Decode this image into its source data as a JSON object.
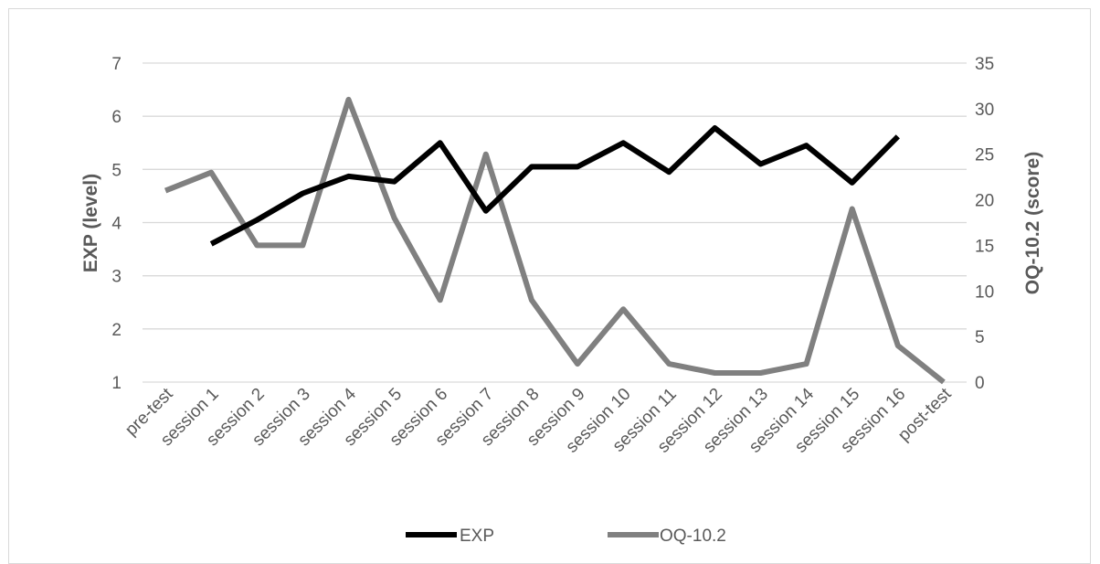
{
  "chart_data": {
    "type": "line",
    "categories": [
      "pre-test",
      "session 1",
      "session 2",
      "session 3",
      "session 4",
      "session 5",
      "session 6",
      "session 7",
      "session 8",
      "session 9",
      "session 10",
      "session 11",
      "session 12",
      "session 13",
      "session 14",
      "session 15",
      "session 16",
      "post-test"
    ],
    "series": [
      {
        "name": "EXP",
        "axis": "left",
        "color": "#000000",
        "values": [
          null,
          3.6,
          4.05,
          4.55,
          4.87,
          4.77,
          5.5,
          4.22,
          5.05,
          5.05,
          5.5,
          4.95,
          5.78,
          5.1,
          5.45,
          4.75,
          5.62,
          null
        ]
      },
      {
        "name": "OQ-10.2",
        "axis": "right",
        "color": "#808080",
        "values": [
          21,
          23,
          15,
          15,
          31,
          18,
          9,
          25,
          9,
          2,
          8,
          2,
          1,
          1,
          2,
          19,
          4,
          0
        ]
      }
    ],
    "ylabel": "EXP (level)",
    "y2label": "OQ-10.2 (score)",
    "ylim": [
      1,
      7
    ],
    "y2lim": [
      0,
      35
    ],
    "yticks": [
      "1",
      "2",
      "3",
      "4",
      "5",
      "6",
      "7"
    ],
    "y2ticks": [
      "0",
      "5",
      "10",
      "15",
      "20",
      "25",
      "30",
      "35"
    ],
    "grid": true,
    "legend": "bottom"
  }
}
